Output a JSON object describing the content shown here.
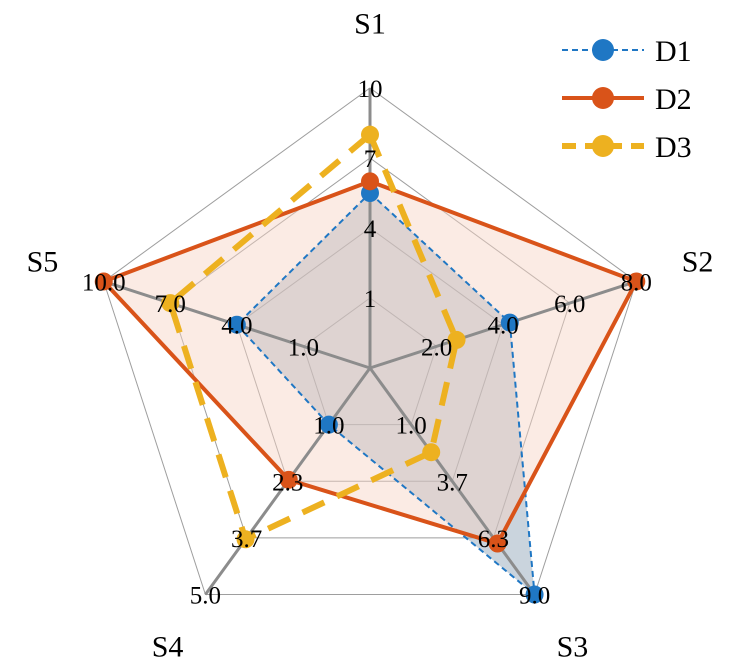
{
  "chart_data": {
    "type": "radar",
    "axes": [
      {
        "name": "S1",
        "min": 1,
        "max": 10,
        "ticks": [
          "1",
          "4",
          "7",
          "10"
        ]
      },
      {
        "name": "S2",
        "min": 2,
        "max": 8,
        "ticks": [
          "2.0",
          "4.0",
          "6.0",
          "8.0"
        ]
      },
      {
        "name": "S3",
        "min": 1,
        "max": 9,
        "ticks": [
          "1.0",
          "3.7",
          "6.3",
          "9.0"
        ]
      },
      {
        "name": "S4",
        "min": 1,
        "max": 5,
        "ticks": [
          "1.0",
          "2.3",
          "3.7",
          "5.0"
        ]
      },
      {
        "name": "S5",
        "min": 1,
        "max": 10,
        "ticks": [
          "1.0",
          "4.0",
          "7.0",
          "10.0"
        ]
      }
    ],
    "series": [
      {
        "name": "D1",
        "values": [
          5.5,
          4.2,
          9.0,
          1.0,
          4.0
        ],
        "color": "#1f77c4",
        "line": "dashed",
        "fill": "#8a9fb3"
      },
      {
        "name": "D2",
        "values": [
          6.0,
          8.0,
          6.6,
          2.3,
          10.0
        ],
        "color": "#d95319",
        "line": "solid",
        "fill": "#f6d3c3"
      },
      {
        "name": "D3",
        "values": [
          8.0,
          2.6,
          2.3,
          3.7,
          7.0
        ],
        "color": "#edb120",
        "line": "dashed",
        "fill": "none"
      }
    ],
    "grid": true,
    "legend_position": "top-right"
  }
}
